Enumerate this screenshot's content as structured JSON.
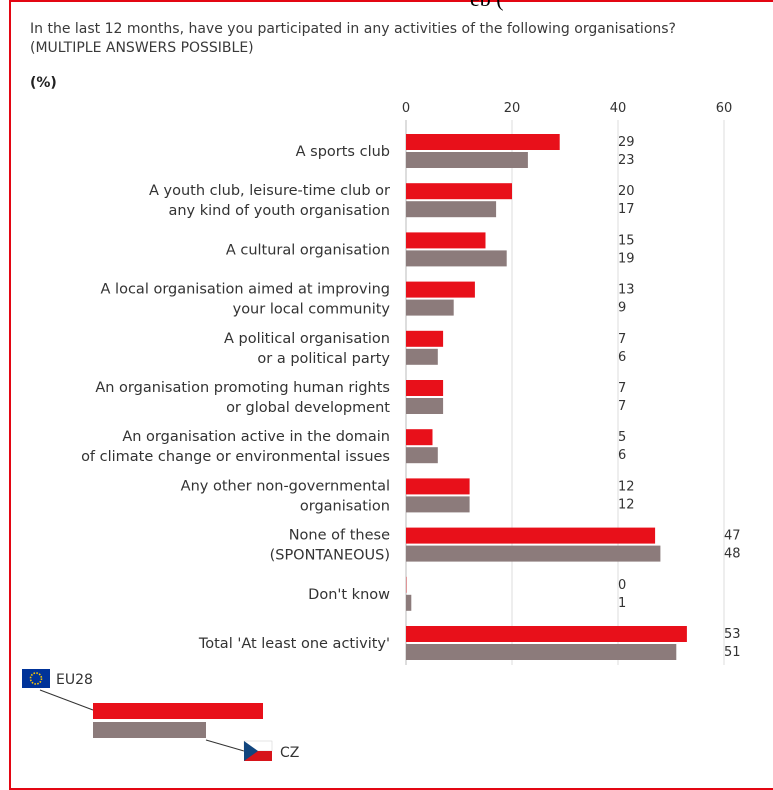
{
  "header": {
    "clipped_text": "eb (",
    "question": "In the last 12 months, have you participated in any activities of the following organisations? (MULTIPLE ANSWERS POSSIBLE)",
    "unit": "(%)"
  },
  "colors": {
    "eu28": "#e8101a",
    "cz": "#8c7b7b",
    "frame": "#e30613",
    "text": "#333333",
    "grid": "#dddddd"
  },
  "legend": {
    "eu28_label": "EU28",
    "cz_label": "CZ"
  },
  "chart_data": {
    "type": "bar",
    "orientation": "horizontal",
    "xlim": [
      0,
      60
    ],
    "xticks": [
      0,
      20,
      40,
      60
    ],
    "categories": [
      [
        "A sports club"
      ],
      [
        "A youth club, leisure-time club or",
        "any kind of youth organisation"
      ],
      [
        "A cultural organisation"
      ],
      [
        "A local organisation aimed at improving",
        "your local community"
      ],
      [
        "A political organisation",
        "or a political party"
      ],
      [
        "An organisation promoting human rights",
        "or global development"
      ],
      [
        "An organisation active in the domain",
        "of climate change or environmental issues"
      ],
      [
        "Any other non-governmental",
        "organisation"
      ],
      [
        "None of these",
        "(SPONTANEOUS)"
      ],
      [
        "Don't know"
      ],
      [
        "Total 'At least one activity'"
      ]
    ],
    "series": [
      {
        "name": "EU28",
        "values": [
          29,
          20,
          15,
          13,
          7,
          7,
          5,
          12,
          47,
          0,
          53
        ]
      },
      {
        "name": "CZ",
        "values": [
          23,
          17,
          19,
          9,
          6,
          7,
          6,
          12,
          48,
          1,
          51
        ]
      }
    ],
    "legend_position": "bottom-left"
  }
}
